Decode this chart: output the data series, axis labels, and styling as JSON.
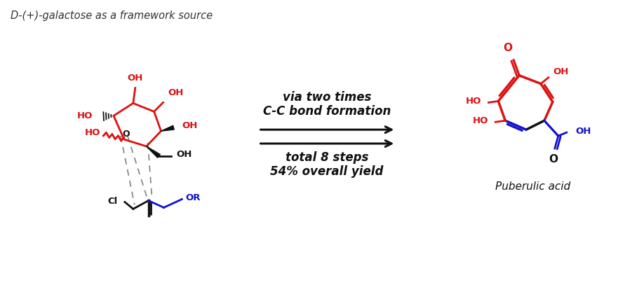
{
  "title_text": "D-(+)-galactose as a framework source",
  "title_color": "#333333",
  "title_fontsize": 10.5,
  "arrow_text1": "via two times",
  "arrow_text2": "C-C bond formation",
  "arrow_text3": "total 8 steps",
  "arrow_text4": "54% overall yield",
  "arrow_text_fontsize": 12,
  "product_label": "Puberulic acid",
  "red_color": "#DD1111",
  "blue_color": "#1111CC",
  "black_color": "#111111",
  "gray_color": "#888888",
  "bg_color": "#ffffff",
  "lw": 2.0
}
